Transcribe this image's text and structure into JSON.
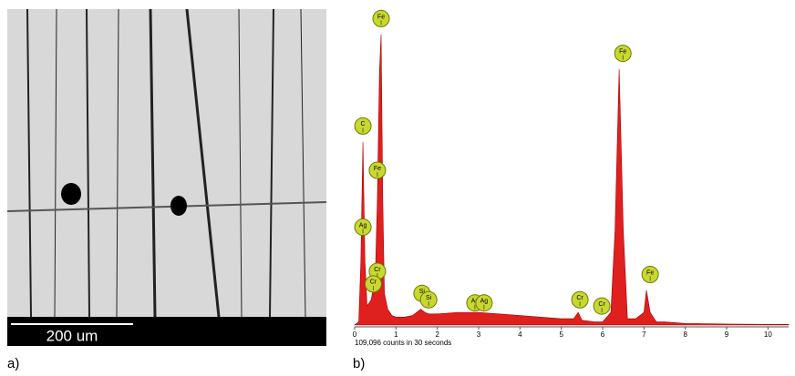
{
  "sem_image": {
    "scale_bar": "200 um",
    "label": "a)"
  },
  "chart_data": {
    "type": "area",
    "label": "b)",
    "footnote": "109,096 counts in 30 seconds",
    "color": "#e01f1f",
    "x": [
      0,
      0.1,
      0.15,
      0.2,
      0.25,
      0.3,
      0.4,
      0.5,
      0.55,
      0.6,
      0.64,
      0.68,
      0.72,
      0.8,
      0.9,
      1.0,
      1.2,
      1.4,
      1.6,
      1.7,
      1.8,
      2.0,
      2.5,
      3.0,
      3.5,
      4.0,
      4.5,
      5.0,
      5.3,
      5.41,
      5.5,
      5.8,
      6.0,
      6.2,
      6.3,
      6.4,
      6.5,
      6.6,
      6.8,
      7.0,
      7.06,
      7.15,
      7.3,
      7.5,
      8,
      9,
      10,
      10.5
    ],
    "values": [
      0,
      1,
      20,
      58,
      20,
      6,
      8,
      15,
      40,
      80,
      92,
      40,
      10,
      5,
      3,
      2.5,
      2.5,
      3,
      5,
      4,
      3.5,
      3.5,
      4,
      4,
      3.5,
      3,
      2.5,
      2,
      2,
      4,
      1.5,
      1,
      1,
      4,
      30,
      81,
      30,
      2,
      2,
      4,
      11,
      4,
      1,
      1,
      0.5,
      0.3,
      0.2,
      0.2
    ],
    "xlim": [
      0,
      10.5
    ],
    "xticks": [
      0,
      1,
      2,
      3,
      4,
      5,
      6,
      7,
      8,
      9,
      10
    ],
    "ylim": [
      0,
      100
    ],
    "annotations": [
      {
        "label": "Fe",
        "x": 0.64,
        "y": 97
      },
      {
        "label": "C",
        "x": 0.2,
        "y": 63
      },
      {
        "label": "Fe",
        "x": 0.55,
        "y": 49
      },
      {
        "label": "Ag",
        "x": 0.2,
        "y": 31
      },
      {
        "label": "Cr",
        "x": 0.55,
        "y": 17
      },
      {
        "label": "Cr",
        "x": 0.45,
        "y": 13
      },
      {
        "label": "Si",
        "x": 1.63,
        "y": 10
      },
      {
        "label": "Si",
        "x": 1.79,
        "y": 8
      },
      {
        "label": "Ag",
        "x": 2.91,
        "y": 7
      },
      {
        "label": "Ag",
        "x": 3.13,
        "y": 7
      },
      {
        "label": "Cr",
        "x": 5.45,
        "y": 8
      },
      {
        "label": "Cr",
        "x": 5.98,
        "y": 6
      },
      {
        "label": "Fe",
        "x": 6.49,
        "y": 86
      },
      {
        "label": "Fe",
        "x": 7.15,
        "y": 16
      }
    ]
  }
}
